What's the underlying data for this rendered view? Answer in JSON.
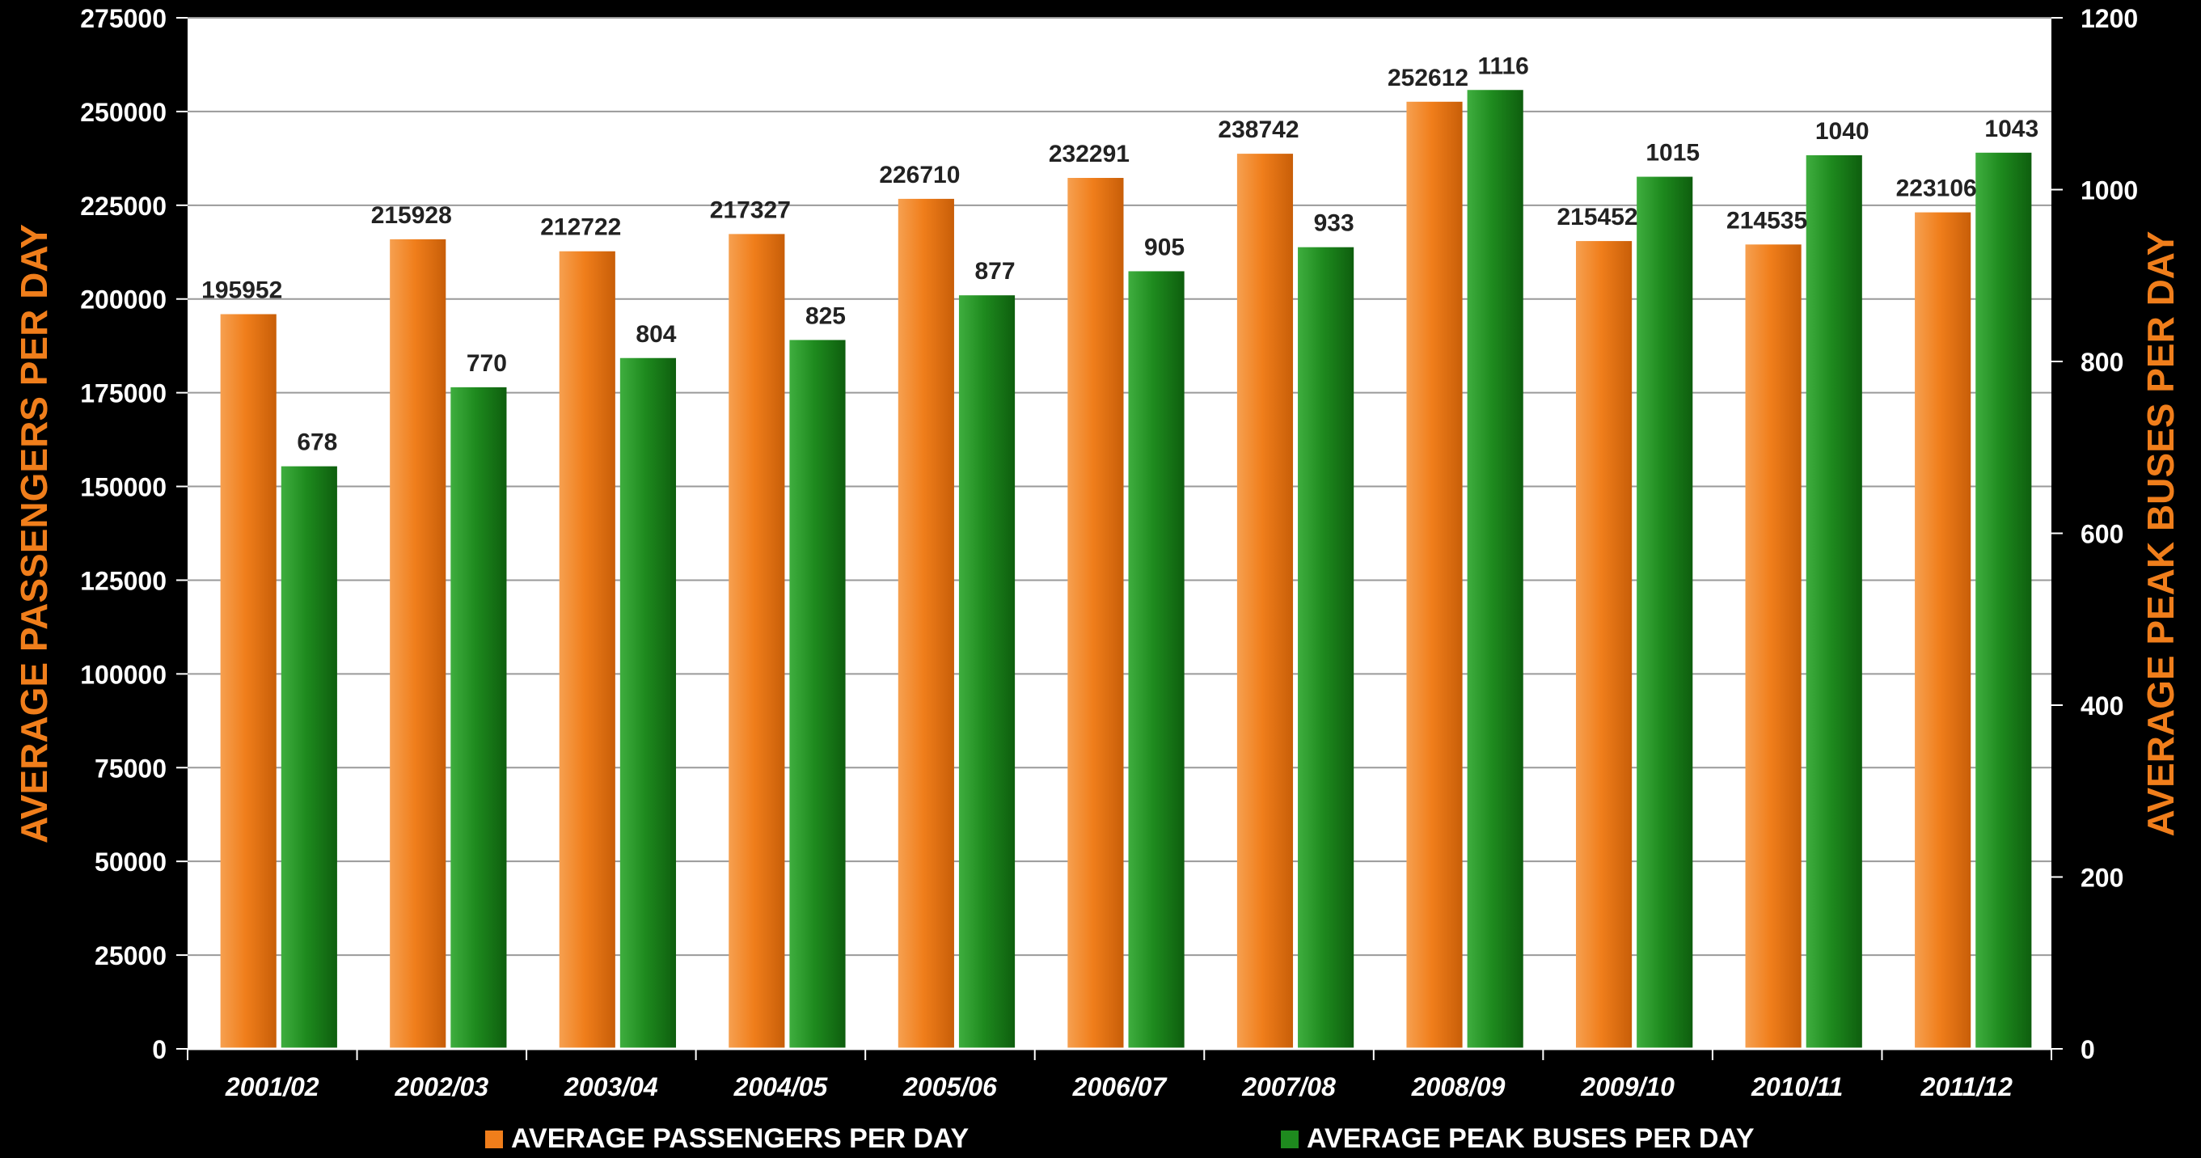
{
  "chart_data": {
    "type": "bar",
    "categories": [
      "2001/02",
      "2002/03",
      "2003/04",
      "2004/05",
      "2005/06",
      "2006/07",
      "2007/08",
      "2008/09",
      "2009/10",
      "2010/11",
      "2011/12"
    ],
    "series": [
      {
        "name": "AVERAGE PASSENGERS PER DAY",
        "axis": "left",
        "color": "#F07E1B",
        "values": [
          195952,
          215928,
          212722,
          217327,
          226710,
          232291,
          238742,
          252612,
          215452,
          214535,
          223106
        ]
      },
      {
        "name": "AVERAGE PEAK BUSES PER DAY",
        "axis": "right",
        "color": "#1E8A1E",
        "values": [
          678,
          770,
          804,
          825,
          877,
          905,
          933,
          1116,
          1015,
          1040,
          1043
        ]
      }
    ],
    "y_left": {
      "label": "AVERAGE PASSENGERS PER DAY",
      "range": [
        0,
        275000
      ],
      "ticks": [
        "0",
        "25000",
        "50000",
        "75000",
        "100000",
        "125000",
        "150000",
        "175000",
        "200000",
        "225000",
        "250000",
        "275000"
      ]
    },
    "y_right": {
      "label": "AVERAGE PEAK BUSES PER DAY",
      "range": [
        0,
        1200
      ],
      "ticks": [
        "0",
        "200",
        "400",
        "600",
        "800",
        "1000",
        "1200"
      ]
    },
    "grid": true,
    "legend_position": "bottom",
    "data_labels": true
  }
}
